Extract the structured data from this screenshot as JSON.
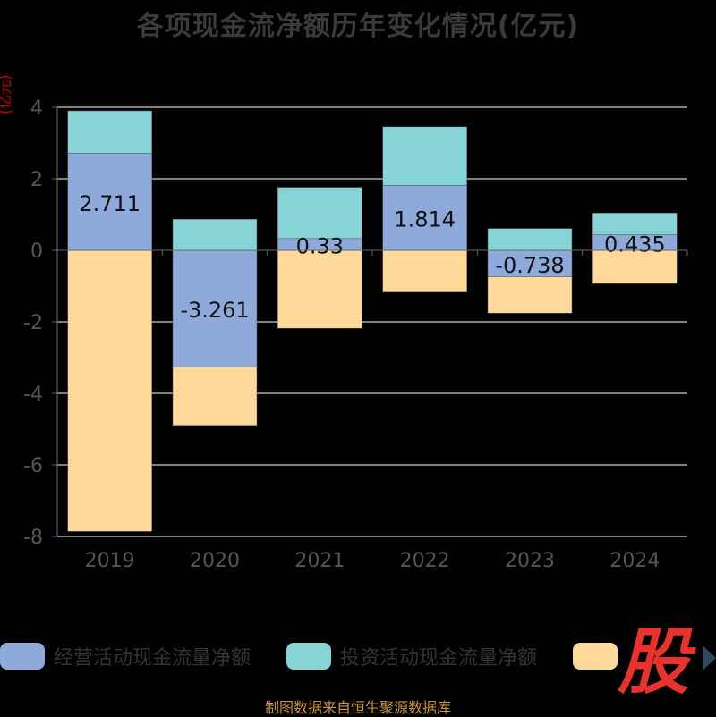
{
  "title": "各项现金流净额历年变化情况(亿元)",
  "unit_label": "(亿元)",
  "source": "制图数据来自恒生聚源数据库",
  "logo_text": "股",
  "colors": {
    "background": "#000000",
    "operating": "#8eaadb",
    "investing": "#86d4d6",
    "financing": "#ffd99a",
    "grid": "#ffffff",
    "axis_text": "#555555"
  },
  "legend": [
    {
      "name": "经营活动现金流量净额",
      "color": "#8eaadb"
    },
    {
      "name": "投资活动现金流量净额",
      "color": "#86d4d6"
    },
    {
      "name": "",
      "color": "#ffd99a"
    }
  ],
  "chart_data": {
    "type": "bar",
    "stacked": true,
    "title": "各项现金流净额历年变化情况(亿元)",
    "ylabel": "(亿元)",
    "categories": [
      "2019",
      "2020",
      "2021",
      "2022",
      "2023",
      "2024"
    ],
    "ylim": [
      -8,
      4
    ],
    "yticks": [
      4,
      2,
      0,
      -2,
      -4,
      -6,
      -8
    ],
    "grid": true,
    "legend_position": "bottom",
    "series": [
      {
        "name": "经营活动现金流量净额",
        "values": [
          2.711,
          -3.261,
          0.33,
          1.814,
          -0.738,
          0.435
        ],
        "labels": [
          "2.711",
          "-3.261",
          "0.33",
          "1.814",
          "-0.738",
          "0.435"
        ]
      },
      {
        "name": "投资活动现金流量净额",
        "values": [
          1.19,
          0.87,
          1.43,
          1.64,
          0.61,
          0.61
        ]
      },
      {
        "name": "",
        "values": [
          -7.86,
          -1.63,
          -2.18,
          -1.17,
          -1.02,
          -0.93
        ]
      }
    ]
  }
}
